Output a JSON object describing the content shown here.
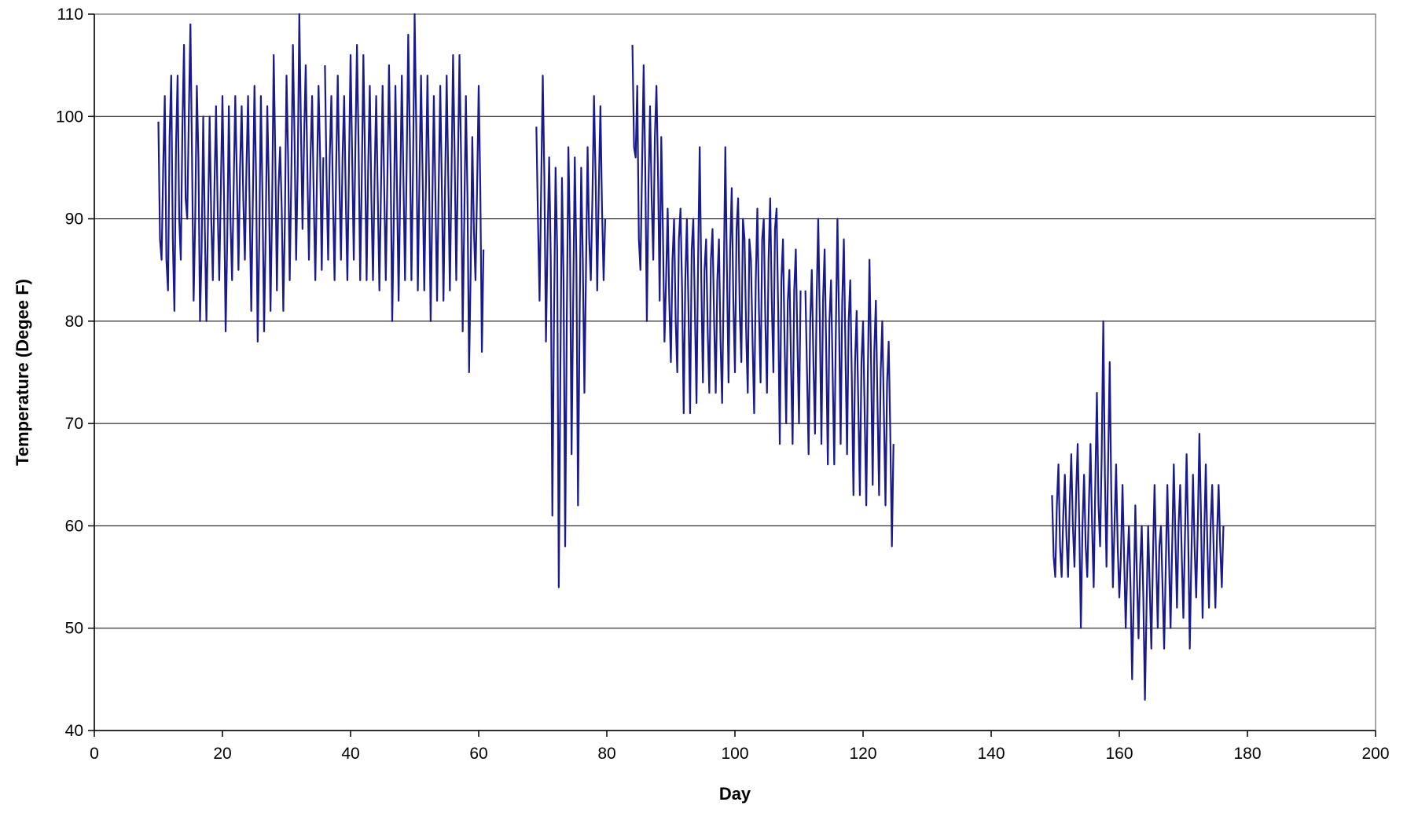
{
  "chart_data": {
    "type": "line",
    "title": "",
    "xlabel": "Day",
    "ylabel": "Temperature (Degee F)",
    "xlim": [
      0,
      200
    ],
    "ylim": [
      40,
      110
    ],
    "x_ticks": [
      "0",
      "20",
      "40",
      "60",
      "80",
      "100",
      "120",
      "140",
      "160",
      "180",
      "200"
    ],
    "y_ticks": [
      "110",
      "100",
      "90",
      "80",
      "70",
      "60",
      "50",
      "40"
    ],
    "grid": "horizontal major gridlines",
    "legend": "none",
    "colors": {
      "series": "#1a1a8c",
      "grid": "#000000",
      "axis": "#000000"
    },
    "series": [
      {
        "note_hidden": "",
        "segments": [
          {
            "x_start": 10.0,
            "x_step": 0.25,
            "y": [
              99.5,
              88,
              86,
              95,
              102,
              86,
              83,
              98,
              104,
              88,
              81,
              97,
              104,
              90,
              86,
              99,
              107,
              92,
              90,
              100,
              109,
              96,
              82,
              90,
              103,
              96,
              80,
              87,
              100,
              89,
              80,
              90,
              100,
              90,
              84,
              93,
              101,
              91,
              84,
              93,
              102,
              92,
              79,
              88,
              101,
              90,
              84,
              93,
              102,
              94,
              85,
              95,
              101,
              92,
              86,
              95,
              102,
              91,
              81,
              92,
              103,
              94,
              78,
              88,
              102,
              92,
              79,
              89,
              101,
              93,
              81,
              91,
              106,
              96,
              83,
              93,
              97,
              91,
              81,
              90,
              104,
              96,
              84,
              94,
              107,
              98,
              86,
              95,
              110,
              99,
              89,
              98,
              105,
              95,
              86,
              96,
              102,
              92,
              84,
              94,
              103,
              96,
              85,
              96
            ]
          },
          {
            "x_start": 36.0,
            "x_step": 0.25,
            "y": [
              105,
              94,
              86,
              96,
              102,
              92,
              84,
              95,
              104,
              94,
              86,
              96,
              102,
              92,
              84,
              95,
              106,
              96,
              86,
              97,
              107,
              97,
              84,
              94,
              106,
              96,
              84,
              95,
              103,
              92,
              84,
              94,
              102,
              92,
              83,
              93,
              103,
              93,
              84,
              94,
              105,
              95,
              80,
              90,
              103,
              93,
              82,
              93,
              104,
              94,
              84,
              95,
              108,
              98,
              84,
              95,
              110,
              99,
              83,
              94,
              104,
              94,
              83,
              93,
              104,
              94,
              80,
              91,
              102,
              92,
              82,
              93,
              103,
              93,
              82,
              93,
              104,
              94,
              83,
              94,
              106,
              96,
              84,
              95,
              106,
              96,
              79,
              90,
              102,
              92,
              75,
              85,
              98,
              89,
              84,
              93,
              103,
              93,
              77,
              87
            ]
          },
          {
            "x_start": 69.0,
            "x_step": 0.25,
            "y": [
              99,
              90,
              82,
              93,
              104,
              94,
              78,
              88,
              96,
              86,
              61,
              80,
              95,
              87,
              54,
              75,
              94,
              84,
              58,
              80,
              97,
              88,
              67,
              82,
              96,
              86,
              62,
              80,
              95,
              86,
              73,
              85,
              97,
              88,
              84,
              92,
              102,
              94,
              83,
              93,
              101,
              91,
              84,
              90
            ]
          },
          {
            "x_start": 84.0,
            "x_step": 0.25,
            "y": [
              107,
              97,
              96,
              103,
              88,
              85,
              95,
              105,
              95,
              80,
              93,
              101,
              92,
              86,
              98,
              103,
              94,
              82,
              98,
              89,
              78,
              84,
              91,
              82,
              76,
              86,
              90,
              80,
              75,
              88,
              91,
              83,
              71,
              84,
              90,
              81,
              71,
              87,
              90,
              81,
              72,
              86,
              97,
              84,
              74,
              85,
              88,
              79,
              73,
              86,
              89,
              80,
              73,
              84,
              88,
              78,
              72,
              84,
              97,
              85,
              74,
              87,
              93,
              82,
              75,
              89,
              92,
              81,
              76,
              90,
              88,
              79,
              73,
              88,
              86,
              78,
              71,
              84,
              91,
              81,
              74,
              88,
              90,
              80,
              73,
              86,
              92,
              82,
              75,
              89,
              91,
              81,
              68,
              84,
              88,
              78,
              70,
              82,
              85,
              76,
              68,
              83,
              87,
              78,
              70,
              83
            ]
          },
          {
            "x_start": 111.0,
            "x_step": 0.25,
            "y": [
              83,
              75,
              67,
              80,
              85,
              76,
              69,
              82,
              90,
              80,
              68,
              82,
              87,
              77,
              66,
              80,
              84,
              75,
              66,
              79,
              90,
              80,
              68,
              82,
              88,
              77,
              67,
              80,
              84,
              74,
              63,
              76,
              81,
              72,
              63,
              76,
              80,
              71,
              62,
              75,
              86,
              76,
              64,
              77,
              82,
              72,
              63,
              75,
              80,
              71,
              62,
              74,
              78,
              69,
              58,
              68
            ]
          },
          {
            "x_start": 149.5,
            "x_step": 0.25,
            "y": [
              63,
              57,
              55,
              62,
              66,
              58,
              55,
              61,
              65,
              59,
              55,
              62,
              67,
              60,
              56,
              63,
              68,
              60,
              50,
              60,
              65,
              58,
              55,
              62,
              68,
              60,
              54,
              64,
              73,
              62,
              58,
              67,
              80,
              65,
              56,
              66,
              76,
              63,
              54,
              60,
              66,
              58,
              53,
              57,
              64,
              57,
              50,
              56,
              60,
              54,
              45,
              53,
              62,
              55,
              49,
              56,
              60,
              53,
              43,
              52,
              60,
              54,
              48,
              57,
              64,
              57,
              50,
              58,
              60,
              54,
              48,
              56,
              64,
              57,
              50,
              58,
              66,
              59,
              52,
              60,
              64,
              57,
              51,
              59,
              67,
              59,
              48,
              57,
              65,
              58,
              53,
              60,
              69,
              61,
              51,
              59,
              66,
              58,
              52,
              60,
              64,
              57,
              52,
              59,
              64,
              58,
              54,
              60
            ]
          }
        ]
      }
    ]
  }
}
